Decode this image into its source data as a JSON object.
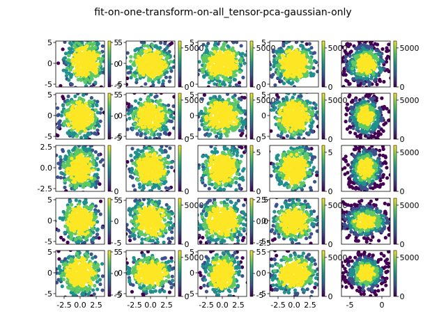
{
  "figure": {
    "title": "fit-on-one-transform-on-all_tensor-pca-gaussian-only",
    "rows": 5,
    "cols": 5,
    "colormap": [
      "#440154",
      "#3b528b",
      "#21908c",
      "#5ec962",
      "#fde725"
    ]
  },
  "chart_data": {
    "type": "scatter",
    "title": "fit-on-one-transform-on-all_tensor-pca-gaussian-only",
    "grid": false,
    "legend": "none",
    "colorbar": "right of each panel, viridis",
    "panels": [
      {
        "row": 0,
        "col": 0,
        "xlim": [
          -5,
          5
        ],
        "ylim": [
          -5,
          5
        ],
        "yticks": [
          "5",
          "0",
          "-5"
        ],
        "xticks": [],
        "cbar_ticks": [
          "5",
          "0",
          "-5"
        ],
        "spread": [
          0.55,
          0.62
        ],
        "center": [
          0.1,
          0.05
        ],
        "shape": "blob"
      },
      {
        "row": 0,
        "col": 1,
        "xlim": [
          -5,
          5
        ],
        "ylim": [
          -5,
          5
        ],
        "yticks": [
          "5",
          "0",
          "-5"
        ],
        "xticks": [],
        "cbar_ticks": [
          "5000",
          "0"
        ],
        "spread": [
          0.6,
          0.55
        ],
        "center": [
          0,
          0
        ],
        "shape": "blob"
      },
      {
        "row": 0,
        "col": 2,
        "xlim": [
          -5,
          5
        ],
        "ylim": [
          -5,
          5
        ],
        "yticks": [
          "5",
          "0"
        ],
        "xticks": [],
        "cbar_ticks": [
          "5000",
          "0"
        ],
        "spread": [
          0.6,
          0.6
        ],
        "center": [
          0,
          0
        ],
        "shape": "blob"
      },
      {
        "row": 0,
        "col": 3,
        "xlim": [
          -5,
          5
        ],
        "ylim": [
          -5,
          5
        ],
        "yticks": [
          "5",
          "0"
        ],
        "xticks": [],
        "cbar_ticks": [
          "5000",
          "0"
        ],
        "spread": [
          0.55,
          0.55
        ],
        "center": [
          0,
          0
        ],
        "shape": "blob"
      },
      {
        "row": 0,
        "col": 4,
        "xlim": [
          -5,
          5
        ],
        "ylim": [
          -5,
          5
        ],
        "yticks": [],
        "xticks": [],
        "cbar_ticks": [
          "5000",
          "0"
        ],
        "spread": [
          0.62,
          0.65
        ],
        "center": [
          0,
          0
        ],
        "shape": "ring"
      },
      {
        "row": 1,
        "col": 0,
        "xlim": [
          -5,
          5
        ],
        "ylim": [
          -5,
          5
        ],
        "yticks": [
          "5",
          "0",
          "-5"
        ],
        "xticks": [],
        "cbar_ticks": [
          "5",
          "0",
          "-5"
        ],
        "spread": [
          0.5,
          0.6
        ],
        "center": [
          0,
          0
        ],
        "shape": "blob"
      },
      {
        "row": 1,
        "col": 1,
        "xlim": [
          -5,
          5
        ],
        "ylim": [
          -5,
          5
        ],
        "yticks": [
          "5",
          "0",
          "-5"
        ],
        "xticks": [],
        "cbar_ticks": [
          "5000",
          "0"
        ],
        "spread": [
          0.55,
          0.55
        ],
        "center": [
          0,
          0
        ],
        "shape": "blob"
      },
      {
        "row": 1,
        "col": 2,
        "xlim": [
          -5,
          5
        ],
        "ylim": [
          -5,
          5
        ],
        "yticks": [
          "5",
          "0",
          "-5"
        ],
        "xticks": [],
        "cbar_ticks": [
          "5000",
          "0"
        ],
        "spread": [
          0.6,
          0.6
        ],
        "center": [
          0,
          0
        ],
        "shape": "blob"
      },
      {
        "row": 1,
        "col": 3,
        "xlim": [
          -5,
          5
        ],
        "ylim": [
          -5,
          5
        ],
        "yticks": [
          "5",
          "0",
          "-5"
        ],
        "xticks": [],
        "cbar_ticks": [
          "5000",
          "0"
        ],
        "spread": [
          0.55,
          0.6
        ],
        "center": [
          0,
          0
        ],
        "shape": "blob"
      },
      {
        "row": 1,
        "col": 4,
        "xlim": [
          -5,
          5
        ],
        "ylim": [
          -5,
          5
        ],
        "yticks": [],
        "xticks": [],
        "cbar_ticks": [
          "5000",
          "0"
        ],
        "spread": [
          0.5,
          0.62
        ],
        "center": [
          0,
          0
        ],
        "shape": "ring"
      },
      {
        "row": 2,
        "col": 0,
        "xlim": [
          -5,
          5
        ],
        "ylim": [
          -3,
          3
        ],
        "yticks": [
          "2.5",
          "0.0",
          "-2.5"
        ],
        "xticks": [],
        "cbar_ticks": [
          "0"
        ],
        "spread": [
          0.5,
          0.62
        ],
        "center": [
          0,
          0
        ],
        "shape": "blob"
      },
      {
        "row": 2,
        "col": 1,
        "xlim": [
          -5,
          5
        ],
        "ylim": [
          -5,
          5
        ],
        "yticks": [],
        "xticks": [],
        "cbar_ticks": [
          "0"
        ],
        "spread": [
          0.55,
          0.6
        ],
        "center": [
          0,
          0
        ],
        "shape": "blob"
      },
      {
        "row": 2,
        "col": 2,
        "xlim": [
          -5,
          5
        ],
        "ylim": [
          -5,
          5
        ],
        "yticks": [],
        "xticks": [],
        "cbar_ticks": [
          "5",
          "0"
        ],
        "spread": [
          0.55,
          0.62
        ],
        "center": [
          0,
          0
        ],
        "shape": "blob"
      },
      {
        "row": 2,
        "col": 3,
        "xlim": [
          -5,
          5
        ],
        "ylim": [
          -5,
          5
        ],
        "yticks": [],
        "xticks": [],
        "cbar_ticks": [
          "5",
          "0"
        ],
        "spread": [
          0.5,
          0.62
        ],
        "center": [
          0,
          0
        ],
        "shape": "blob"
      },
      {
        "row": 2,
        "col": 4,
        "xlim": [
          -5,
          5
        ],
        "ylim": [
          -5,
          5
        ],
        "yticks": [],
        "xticks": [],
        "cbar_ticks": [
          "5000",
          "0"
        ],
        "spread": [
          0.5,
          0.65
        ],
        "center": [
          0,
          0
        ],
        "shape": "ring"
      },
      {
        "row": 3,
        "col": 0,
        "xlim": [
          -5,
          5
        ],
        "ylim": [
          -6,
          6
        ],
        "yticks": [
          "5",
          "0",
          "-5"
        ],
        "xticks": [],
        "cbar_ticks": [
          "5",
          "0",
          "-5"
        ],
        "spread": [
          0.5,
          0.6
        ],
        "center": [
          0,
          0
        ],
        "shape": "blob"
      },
      {
        "row": 3,
        "col": 1,
        "xlim": [
          -5,
          5
        ],
        "ylim": [
          -5,
          5
        ],
        "yticks": [
          "5"
        ],
        "xticks": [],
        "cbar_ticks": [
          "5000",
          "0"
        ],
        "spread": [
          0.6,
          0.6
        ],
        "center": [
          0,
          0
        ],
        "shape": "blob"
      },
      {
        "row": 3,
        "col": 2,
        "xlim": [
          -5,
          5
        ],
        "ylim": [
          -5,
          5
        ],
        "yticks": [],
        "xticks": [],
        "cbar_ticks": [
          "2.5",
          "0.0",
          "-2.5"
        ],
        "spread": [
          0.62,
          0.6
        ],
        "center": [
          0,
          0
        ],
        "shape": "blob"
      },
      {
        "row": 3,
        "col": 3,
        "xlim": [
          -5,
          5
        ],
        "ylim": [
          -5,
          5
        ],
        "yticks": [
          "5",
          "0",
          "-5"
        ],
        "xticks": [],
        "cbar_ticks": [
          "5000",
          "0"
        ],
        "spread": [
          0.55,
          0.55
        ],
        "center": [
          0,
          0
        ],
        "shape": "blob"
      },
      {
        "row": 3,
        "col": 4,
        "xlim": [
          -5,
          5
        ],
        "ylim": [
          -5,
          5
        ],
        "yticks": [],
        "xticks": [],
        "cbar_ticks": [
          "5000",
          "0"
        ],
        "spread": [
          0.7,
          0.5
        ],
        "center": [
          0,
          0
        ],
        "shape": "ring"
      },
      {
        "row": 4,
        "col": 0,
        "xlim": [
          -4,
          4
        ],
        "ylim": [
          -6,
          6
        ],
        "yticks": [
          "5",
          "0",
          "-5"
        ],
        "xticks": [
          "-2.5",
          "0.0",
          "2.5"
        ],
        "cbar_ticks": [
          "5",
          "0",
          "-5"
        ],
        "spread": [
          0.55,
          0.6
        ],
        "center": [
          0,
          0
        ],
        "shape": "blob"
      },
      {
        "row": 4,
        "col": 1,
        "xlim": [
          -4,
          4
        ],
        "ylim": [
          -6,
          6
        ],
        "yticks": [
          "5",
          "0",
          "-5"
        ],
        "xticks": [
          "-2.5",
          "0.0",
          "2.5"
        ],
        "cbar_ticks": [
          "5000",
          "0"
        ],
        "spread": [
          0.6,
          0.5
        ],
        "center": [
          0,
          0
        ],
        "shape": "blob"
      },
      {
        "row": 4,
        "col": 2,
        "xlim": [
          -4,
          4
        ],
        "ylim": [
          -6,
          6
        ],
        "yticks": [
          "5",
          "0",
          "-5"
        ],
        "xticks": [
          "-2.5",
          "0.0",
          "2.5"
        ],
        "cbar_ticks": [
          "5",
          "0",
          "-5"
        ],
        "spread": [
          0.45,
          0.6
        ],
        "center": [
          0,
          0
        ],
        "shape": "blob"
      },
      {
        "row": 4,
        "col": 3,
        "xlim": [
          -4,
          4
        ],
        "ylim": [
          -6,
          6
        ],
        "yticks": [
          "5",
          "0",
          "-5"
        ],
        "xticks": [
          "-2.5",
          "0.0",
          "2.5"
        ],
        "cbar_ticks": [
          "5000",
          "0"
        ],
        "spread": [
          0.6,
          0.55
        ],
        "center": [
          0,
          0
        ],
        "shape": "blob"
      },
      {
        "row": 4,
        "col": 4,
        "xlim": [
          -6,
          5
        ],
        "ylim": [
          -6,
          6
        ],
        "yticks": [],
        "xticks": [
          "-5",
          "0"
        ],
        "cbar_ticks": [
          "5000",
          "0"
        ],
        "spread": [
          0.55,
          0.55
        ],
        "center": [
          0,
          0
        ],
        "shape": "ring"
      }
    ]
  }
}
